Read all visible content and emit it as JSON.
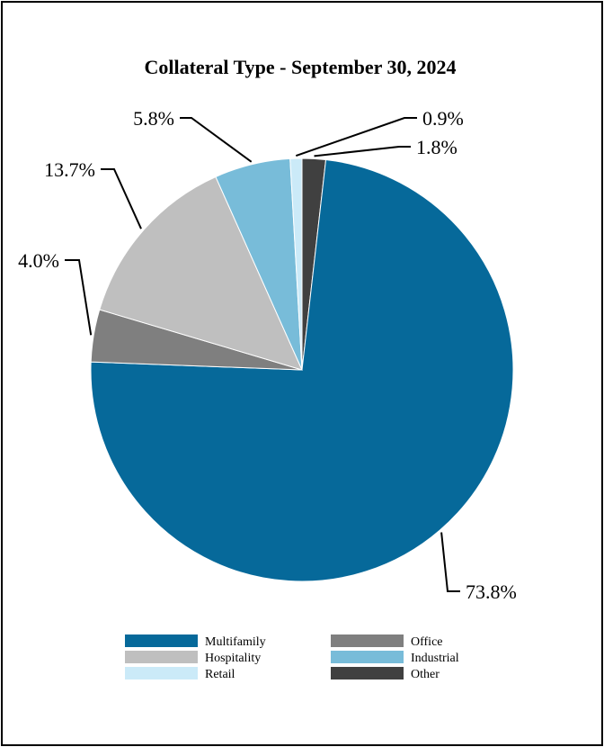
{
  "chart_data": {
    "type": "pie",
    "title": "Collateral Type - September 30, 2024",
    "slices": [
      {
        "name": "Multifamily",
        "value": 73.8,
        "label": "73.8%",
        "color": "#06699a"
      },
      {
        "name": "Office",
        "value": 4.0,
        "label": "4.0%",
        "color": "#7f7f7f"
      },
      {
        "name": "Hospitality",
        "value": 13.7,
        "label": "13.7%",
        "color": "#bfbfbf"
      },
      {
        "name": "Industrial",
        "value": 5.8,
        "label": "5.8%",
        "color": "#78bcd9"
      },
      {
        "name": "Retail",
        "value": 0.9,
        "label": "0.9%",
        "color": "#cbeaf8"
      },
      {
        "name": "Other",
        "value": 1.8,
        "label": "1.8%",
        "color": "#404040"
      }
    ],
    "legend": {
      "placement": "bottom",
      "items": [
        "Multifamily",
        "Office",
        "Hospitality",
        "Industrial",
        "Retail",
        "Other"
      ]
    }
  }
}
